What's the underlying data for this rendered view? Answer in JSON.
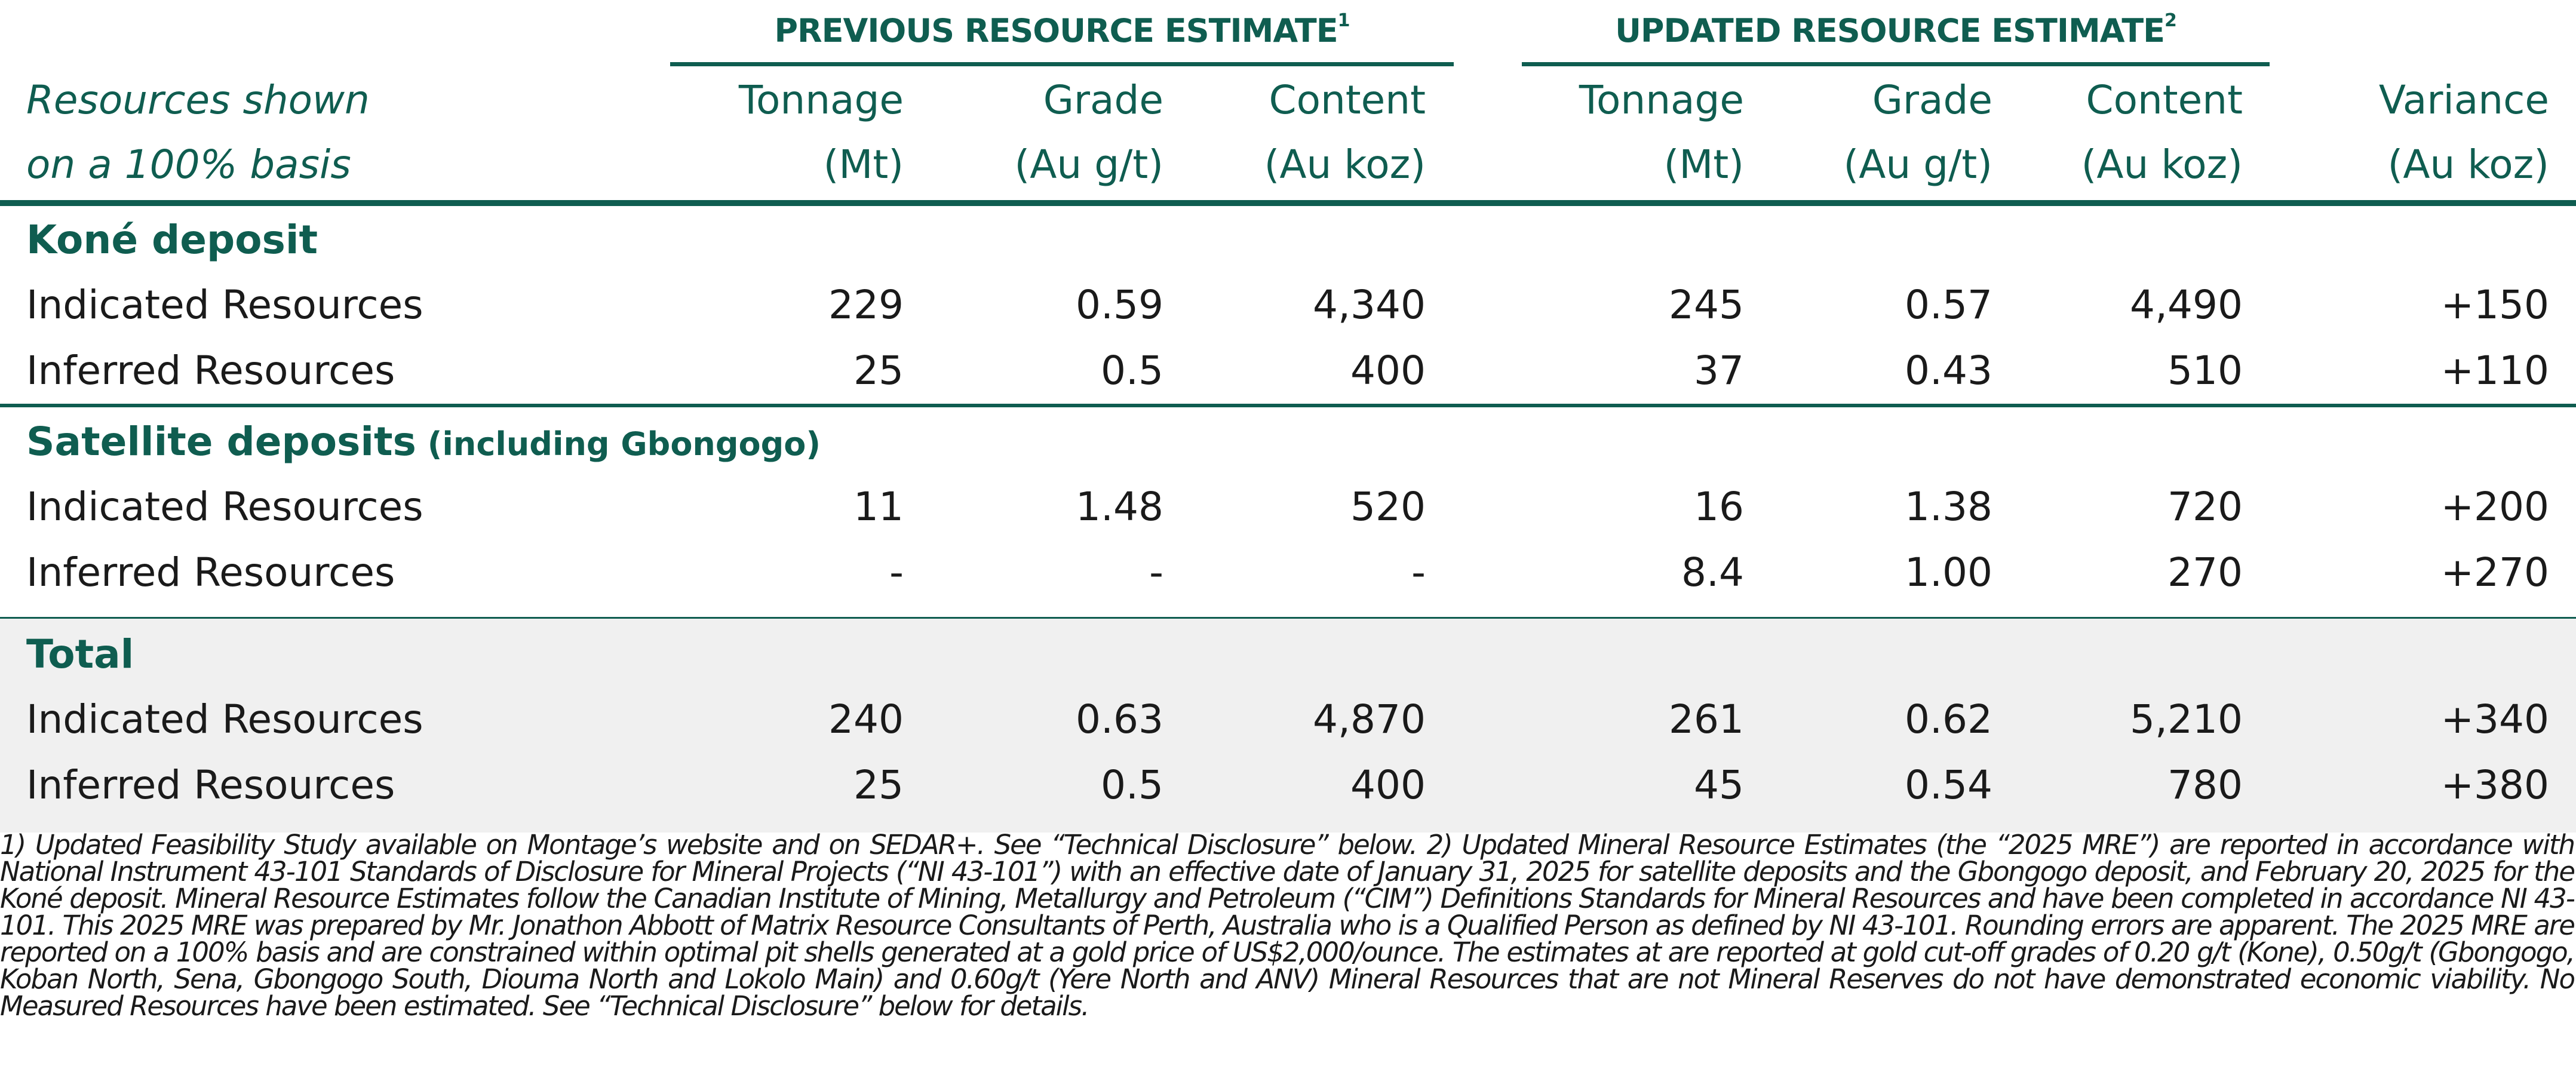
{
  "header": {
    "previous_title": "PREVIOUS RESOURCE ESTIMATE",
    "previous_sup": "1",
    "updated_title": "UPDATED RESOURCE ESTIMATE",
    "updated_sup": "2",
    "label_line1": "Resources shown",
    "label_line2": "on a 100% basis",
    "columns": [
      {
        "line1": "Tonnage",
        "line2": "(Mt)"
      },
      {
        "line1": "Grade",
        "line2": "(Au g/t)"
      },
      {
        "line1": "Content",
        "line2": "(Au koz)"
      },
      {
        "line1": "Tonnage",
        "line2": "(Mt)"
      },
      {
        "line1": "Grade",
        "line2": "(Au g/t)"
      },
      {
        "line1": "Content",
        "line2": "(Au koz)"
      },
      {
        "line1": "Variance",
        "line2": "(Au koz)"
      }
    ]
  },
  "sections": [
    {
      "title": "Koné deposit",
      "title_suffix": "",
      "rows": [
        {
          "label": "Indicated Resources",
          "values": [
            "229",
            "0.59",
            "4,340",
            "245",
            "0.57",
            "4,490",
            "+150"
          ]
        },
        {
          "label": "Inferred Resources",
          "values": [
            "25",
            "0.5",
            "400",
            "37",
            "0.43",
            "510",
            "+110"
          ]
        }
      ]
    },
    {
      "title": "Satellite deposits",
      "title_suffix": " (including Gbongogo)",
      "rows": [
        {
          "label": "Indicated Resources",
          "values": [
            "11",
            "1.48",
            "520",
            "16",
            "1.38",
            "720",
            "+200"
          ]
        },
        {
          "label": "Inferred Resources",
          "values": [
            "-",
            "-",
            "-",
            "8.4",
            "1.00",
            "270",
            "+270"
          ]
        }
      ]
    },
    {
      "title": "Total",
      "title_suffix": "",
      "rows": [
        {
          "label": "Indicated Resources",
          "values": [
            "240",
            "0.63",
            "4,870",
            "261",
            "0.62",
            "5,210",
            "+340"
          ]
        },
        {
          "label": "Inferred Resources",
          "values": [
            "25",
            "0.5",
            "400",
            "45",
            "0.54",
            "780",
            "+380"
          ]
        }
      ]
    }
  ],
  "footnote": "1) Updated Feasibility Study available on Montage’s website and on SEDAR+. See “Technical Disclosure” below. 2) Updated Mineral Resource Estimates (the “2025 MRE”) are reported in accordance with National Instrument 43-101 Standards of Disclosure for Mineral Projects (“NI 43-101”) with an effective date of January 31, 2025 for satellite deposits and the Gbongogo deposit, and February 20, 2025 for the Koné deposit. Mineral Resource Estimates follow the Canadian Institute of Mining, Metallurgy and Petroleum (“CIM”) Definitions Standards for Mineral Resources and have been completed in accordance NI 43-101. This 2025 MRE was prepared by Mr. Jonathon Abbott of Matrix Resource Consultants of Perth, Australia who is a Qualified Person as defined by NI 43-101. Rounding errors are apparent. The 2025 MRE are reported on a 100% basis and are constrained within optimal pit shells generated at a gold price of US$2,000/ounce. The estimates at are reported at gold cut-off grades of 0.20 g/t (Kone), 0.50g/t (Gbongogo, Koban North, Sena, Gbongogo South, Diouma North and Lokolo Main) and 0.60g/t (Yere North and ANV) Mineral Resources that are not Mineral Reserves do not have demonstrated economic viability. No Measured Resources have been estimated. See “Technical Disclosure” below for details.",
  "colors": {
    "accent": "#0f5d50",
    "total_background": "#f0f0f0"
  }
}
